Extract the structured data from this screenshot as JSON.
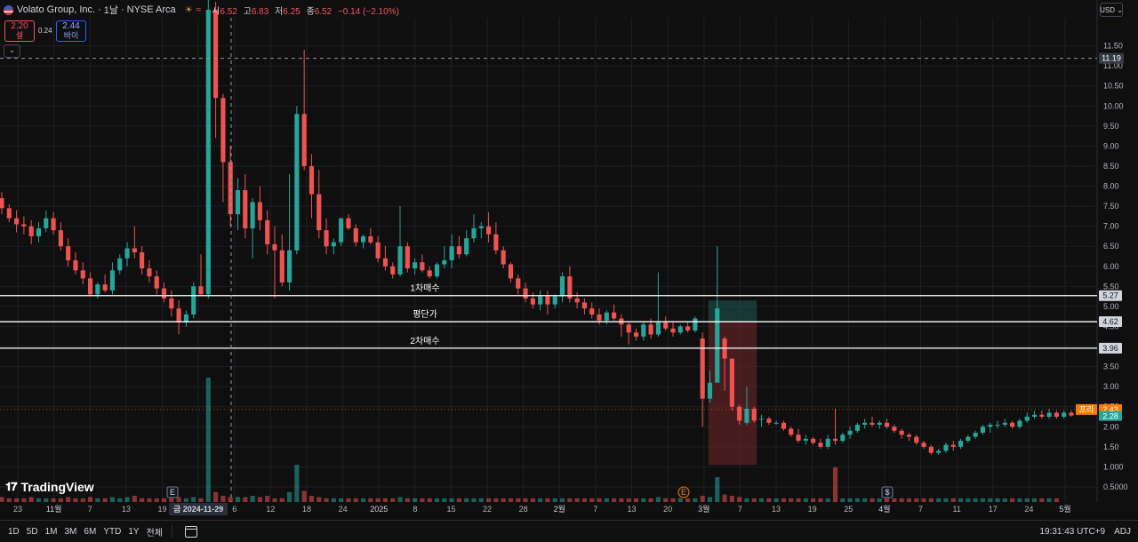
{
  "header": {
    "title": "Volato Group, Inc.",
    "interval": "1날",
    "exchange": "NYSE Arca",
    "indicator_symbol": "≈",
    "ohlc": {
      "open_label": "시",
      "open": "6.52",
      "high_label": "고",
      "high": "6.83",
      "low_label": "저",
      "low": "6.25",
      "close_label": "종",
      "close": "6.52",
      "change": "−0.14 (−2.10%)"
    }
  },
  "trade_panel": {
    "sell_price": "2.20",
    "sell_label": "셀",
    "spread": "0.24",
    "buy_price": "2.44",
    "buy_label": "바이"
  },
  "currency": "USD",
  "toolbar": {
    "ranges": [
      "1D",
      "5D",
      "1M",
      "3M",
      "6M",
      "YTD",
      "1Y",
      "전체"
    ],
    "clock": "19:31:43 UTC+9",
    "adj": "ADJ"
  },
  "logo_text": "TradingView",
  "colors": {
    "up": "#26a69a",
    "down": "#ef5350",
    "background": "#0f0f0f",
    "grid": "#1c1f26",
    "hline": "#ffffff",
    "premarket_badge": "#f57c00",
    "last_price_badge": "#26a69a"
  },
  "chart_data": {
    "type": "candlestick",
    "price_axis": {
      "ticks": [
        "11.50",
        "11.00",
        "10.50",
        "10.00",
        "9.50",
        "9.00",
        "8.50",
        "8.00",
        "7.50",
        "7.00",
        "6.50",
        "6.00",
        "5.50",
        "5.00",
        "4.50",
        "4.00",
        "3.50",
        "3.00",
        "2.50",
        "2.00",
        "1.50",
        "1.000",
        "0.5000"
      ],
      "ylim": [
        0.3,
        12.2
      ]
    },
    "time_axis": {
      "labels": [
        "23",
        "11월",
        "7",
        "13",
        "19",
        "금 2024-11-29",
        "6",
        "12",
        "18",
        "24",
        "2025",
        "8",
        "15",
        "22",
        "28",
        "2월",
        "7",
        "13",
        "20",
        "3월",
        "7",
        "13",
        "19",
        "25",
        "4월",
        "7",
        "11",
        "17",
        "24",
        "5월"
      ],
      "crosshair_label": "금 2024-11-29"
    },
    "horizontal_lines": [
      {
        "label": "1차매수",
        "price": 5.27
      },
      {
        "label": "평단가",
        "price": 4.62
      },
      {
        "label": "2차매수",
        "price": 3.96
      }
    ],
    "price_badges": {
      "crosshair": "11.19",
      "premarket_label": "프리",
      "premarket": "2.43",
      "last": "2.28"
    },
    "position_tool": {
      "entry": 4.62,
      "target": 5.15,
      "stop": 1.05
    },
    "event_markers": [
      "E",
      "E",
      "$"
    ],
    "candles": [
      [
        7.7,
        7.85,
        7.3,
        7.45
      ],
      [
        7.45,
        7.55,
        7.1,
        7.2
      ],
      [
        7.2,
        7.4,
        6.85,
        7.05
      ],
      [
        7.05,
        7.25,
        6.8,
        7.0
      ],
      [
        7.0,
        7.15,
        6.55,
        6.75
      ],
      [
        6.75,
        7.1,
        6.6,
        6.95
      ],
      [
        6.95,
        7.4,
        6.85,
        7.2
      ],
      [
        7.2,
        7.35,
        6.8,
        6.9
      ],
      [
        6.9,
        7.1,
        6.4,
        6.5
      ],
      [
        6.5,
        6.7,
        6.0,
        6.15
      ],
      [
        6.15,
        6.35,
        5.8,
        5.9
      ],
      [
        5.9,
        6.1,
        5.55,
        5.7
      ],
      [
        5.7,
        5.85,
        5.25,
        5.3
      ],
      [
        5.3,
        5.6,
        5.2,
        5.55
      ],
      [
        5.55,
        5.8,
        5.35,
        5.4
      ],
      [
        5.4,
        6.1,
        5.3,
        5.9
      ],
      [
        5.9,
        6.3,
        5.8,
        6.2
      ],
      [
        6.2,
        6.6,
        6.0,
        6.45
      ],
      [
        6.45,
        7.0,
        6.2,
        6.35
      ],
      [
        6.35,
        6.5,
        5.8,
        5.95
      ],
      [
        5.95,
        6.15,
        5.6,
        5.75
      ],
      [
        5.75,
        5.9,
        5.3,
        5.45
      ],
      [
        5.45,
        5.6,
        5.1,
        5.2
      ],
      [
        5.2,
        5.4,
        4.75,
        4.95
      ],
      [
        4.95,
        5.15,
        4.3,
        4.6
      ],
      [
        4.6,
        4.9,
        4.5,
        4.8
      ],
      [
        4.8,
        5.6,
        4.7,
        5.5
      ],
      [
        5.5,
        6.3,
        5.3,
        5.3
      ],
      [
        5.3,
        13.0,
        5.2,
        12.4
      ],
      [
        12.4,
        12.6,
        9.2,
        10.2
      ],
      [
        10.2,
        10.3,
        7.6,
        8.6
      ],
      [
        8.6,
        9.0,
        7.0,
        7.3
      ],
      [
        7.3,
        8.2,
        6.9,
        7.9
      ],
      [
        7.9,
        8.3,
        6.7,
        6.95
      ],
      [
        6.95,
        7.7,
        6.2,
        7.6
      ],
      [
        7.6,
        8.0,
        6.9,
        7.15
      ],
      [
        7.15,
        7.4,
        6.3,
        6.55
      ],
      [
        6.55,
        7.0,
        5.2,
        6.4
      ],
      [
        6.4,
        6.8,
        5.5,
        5.6
      ],
      [
        5.6,
        8.3,
        5.4,
        6.4
      ],
      [
        6.4,
        10.0,
        6.3,
        9.8
      ],
      [
        9.8,
        11.4,
        8.4,
        8.5
      ],
      [
        8.5,
        8.8,
        7.2,
        7.8
      ],
      [
        7.8,
        8.4,
        6.7,
        6.9
      ],
      [
        6.9,
        7.2,
        6.3,
        6.5
      ],
      [
        6.5,
        6.7,
        6.3,
        6.6
      ],
      [
        6.6,
        7.2,
        6.5,
        7.2
      ],
      [
        7.2,
        7.3,
        6.9,
        6.95
      ],
      [
        6.95,
        7.05,
        6.5,
        6.6
      ],
      [
        6.6,
        6.8,
        6.45,
        6.75
      ],
      [
        6.75,
        6.95,
        6.55,
        6.6
      ],
      [
        6.6,
        6.75,
        6.1,
        6.2
      ],
      [
        6.2,
        6.5,
        5.9,
        6.0
      ],
      [
        6.0,
        6.1,
        5.7,
        5.8
      ],
      [
        5.8,
        7.5,
        5.75,
        6.5
      ],
      [
        6.5,
        6.6,
        5.85,
        5.95
      ],
      [
        5.95,
        6.2,
        5.8,
        6.1
      ],
      [
        6.1,
        6.3,
        5.85,
        5.9
      ],
      [
        5.9,
        6.0,
        5.7,
        5.75
      ],
      [
        5.75,
        6.1,
        5.7,
        6.05
      ],
      [
        6.05,
        6.5,
        5.95,
        6.15
      ],
      [
        6.15,
        6.8,
        5.95,
        6.5
      ],
      [
        6.5,
        6.75,
        6.2,
        6.3
      ],
      [
        6.3,
        6.9,
        6.25,
        6.7
      ],
      [
        6.7,
        7.3,
        6.6,
        6.95
      ],
      [
        6.95,
        7.1,
        6.7,
        7.0
      ],
      [
        7.0,
        7.35,
        6.6,
        6.8
      ],
      [
        6.8,
        7.1,
        6.3,
        6.4
      ],
      [
        6.4,
        6.5,
        5.95,
        6.05
      ],
      [
        6.05,
        6.1,
        5.6,
        5.7
      ],
      [
        5.7,
        5.8,
        5.3,
        5.45
      ],
      [
        5.45,
        5.6,
        5.1,
        5.2
      ],
      [
        5.2,
        5.35,
        4.95,
        5.05
      ],
      [
        5.05,
        5.4,
        4.9,
        5.25
      ],
      [
        5.25,
        5.4,
        4.8,
        5.05
      ],
      [
        5.05,
        5.3,
        4.95,
        5.25
      ],
      [
        5.25,
        5.85,
        5.1,
        5.75
      ],
      [
        5.75,
        6.0,
        5.1,
        5.2
      ],
      [
        5.2,
        5.35,
        4.95,
        5.1
      ],
      [
        5.1,
        5.2,
        4.8,
        4.95
      ],
      [
        4.95,
        5.1,
        4.7,
        4.8
      ],
      [
        4.8,
        4.95,
        4.55,
        4.65
      ],
      [
        4.65,
        4.9,
        4.55,
        4.85
      ],
      [
        4.85,
        5.05,
        4.65,
        4.7
      ],
      [
        4.7,
        4.8,
        4.25,
        4.55
      ],
      [
        4.55,
        4.6,
        4.05,
        4.35
      ],
      [
        4.35,
        4.45,
        4.15,
        4.25
      ],
      [
        4.25,
        4.6,
        4.15,
        4.55
      ],
      [
        4.55,
        4.7,
        4.2,
        4.3
      ],
      [
        4.3,
        5.85,
        4.25,
        4.6
      ],
      [
        4.6,
        4.75,
        4.4,
        4.45
      ],
      [
        4.45,
        4.6,
        4.25,
        4.35
      ],
      [
        4.35,
        4.55,
        4.3,
        4.5
      ],
      [
        4.5,
        4.6,
        4.35,
        4.4
      ],
      [
        4.4,
        4.75,
        4.35,
        4.7
      ],
      [
        4.2,
        4.35,
        2.0,
        2.7
      ],
      [
        2.7,
        3.4,
        2.6,
        3.1
      ],
      [
        3.1,
        6.5,
        3.1,
        4.95
      ],
      [
        4.2,
        4.25,
        2.9,
        3.7
      ],
      [
        3.7,
        3.7,
        2.4,
        2.5
      ],
      [
        2.5,
        2.55,
        2.05,
        2.15
      ],
      [
        2.1,
        3.0,
        2.05,
        2.45
      ],
      [
        2.45,
        2.5,
        2.1,
        2.15
      ],
      [
        2.2,
        2.3,
        2.0,
        2.2
      ],
      [
        2.2,
        2.25,
        2.05,
        2.1
      ],
      [
        2.1,
        2.15,
        2.05,
        2.1
      ],
      [
        2.1,
        2.15,
        1.9,
        1.95
      ],
      [
        1.95,
        2.0,
        1.75,
        1.8
      ],
      [
        1.8,
        1.95,
        1.6,
        1.65
      ],
      [
        1.65,
        1.8,
        1.55,
        1.7
      ],
      [
        1.7,
        1.75,
        1.55,
        1.6
      ],
      [
        1.6,
        1.7,
        1.45,
        1.5
      ],
      [
        1.5,
        1.8,
        1.45,
        1.7
      ],
      [
        1.7,
        2.45,
        1.55,
        1.65
      ],
      [
        1.65,
        1.85,
        1.6,
        1.8
      ],
      [
        1.8,
        2.0,
        1.7,
        1.9
      ],
      [
        1.9,
        2.1,
        1.85,
        2.05
      ],
      [
        2.05,
        2.2,
        1.95,
        2.1
      ],
      [
        2.1,
        2.25,
        2.0,
        2.05
      ],
      [
        2.05,
        2.15,
        1.95,
        2.1
      ],
      [
        2.1,
        2.2,
        1.95,
        2.0
      ],
      [
        2.0,
        2.05,
        1.85,
        1.9
      ],
      [
        1.9,
        1.95,
        1.7,
        1.8
      ],
      [
        1.8,
        1.85,
        1.65,
        1.75
      ],
      [
        1.75,
        1.8,
        1.55,
        1.6
      ],
      [
        1.6,
        1.65,
        1.45,
        1.5
      ],
      [
        1.5,
        1.55,
        1.3,
        1.35
      ],
      [
        1.35,
        1.45,
        1.3,
        1.4
      ],
      [
        1.4,
        1.6,
        1.35,
        1.55
      ],
      [
        1.55,
        1.65,
        1.4,
        1.5
      ],
      [
        1.5,
        1.7,
        1.45,
        1.65
      ],
      [
        1.65,
        1.8,
        1.6,
        1.75
      ],
      [
        1.75,
        1.9,
        1.7,
        1.85
      ],
      [
        1.85,
        2.05,
        1.8,
        2.0
      ],
      [
        2.0,
        2.1,
        1.85,
        2.05
      ],
      [
        2.05,
        2.15,
        1.95,
        2.05
      ],
      [
        2.05,
        2.2,
        2.0,
        2.1
      ],
      [
        2.1,
        2.15,
        1.95,
        2.0
      ],
      [
        2.0,
        2.2,
        1.95,
        2.15
      ],
      [
        2.15,
        2.35,
        2.1,
        2.25
      ],
      [
        2.25,
        2.4,
        2.2,
        2.3
      ],
      [
        2.3,
        2.4,
        2.2,
        2.25
      ],
      [
        2.25,
        2.45,
        2.2,
        2.35
      ],
      [
        2.35,
        2.4,
        2.2,
        2.25
      ],
      [
        2.25,
        2.4,
        2.2,
        2.35
      ],
      [
        2.35,
        2.4,
        2.25,
        2.28
      ]
    ],
    "volume": [
      0.04,
      0.03,
      0.03,
      0.03,
      0.04,
      0.03,
      0.03,
      0.03,
      0.03,
      0.04,
      0.03,
      0.03,
      0.04,
      0.03,
      0.03,
      0.04,
      0.03,
      0.04,
      0.05,
      0.03,
      0.03,
      0.03,
      0.03,
      0.03,
      0.04,
      0.03,
      0.04,
      0.03,
      1.0,
      0.08,
      0.05,
      0.04,
      0.04,
      0.04,
      0.05,
      0.04,
      0.05,
      0.03,
      0.03,
      0.08,
      0.3,
      0.09,
      0.05,
      0.04,
      0.03,
      0.03,
      0.03,
      0.03,
      0.03,
      0.03,
      0.03,
      0.03,
      0.03,
      0.03,
      0.04,
      0.03,
      0.03,
      0.03,
      0.03,
      0.03,
      0.03,
      0.03,
      0.03,
      0.03,
      0.03,
      0.03,
      0.03,
      0.03,
      0.03,
      0.03,
      0.03,
      0.03,
      0.03,
      0.03,
      0.03,
      0.03,
      0.03,
      0.03,
      0.03,
      0.03,
      0.03,
      0.03,
      0.03,
      0.03,
      0.03,
      0.03,
      0.03,
      0.03,
      0.03,
      0.04,
      0.03,
      0.03,
      0.03,
      0.03,
      0.03,
      0.05,
      0.04,
      0.2,
      0.06,
      0.05,
      0.04,
      0.03,
      0.03,
      0.03,
      0.03,
      0.03,
      0.03,
      0.03,
      0.03,
      0.03,
      0.03,
      0.03,
      0.03,
      0.28,
      0.03,
      0.03,
      0.03,
      0.03,
      0.03,
      0.03,
      0.03,
      0.03,
      0.03,
      0.03,
      0.03,
      0.03,
      0.03,
      0.03,
      0.03,
      0.03,
      0.03,
      0.03,
      0.03,
      0.03,
      0.03,
      0.03,
      0.03,
      0.03,
      0.03,
      0.03,
      0.03,
      0.03,
      0.03,
      0.03
    ]
  }
}
